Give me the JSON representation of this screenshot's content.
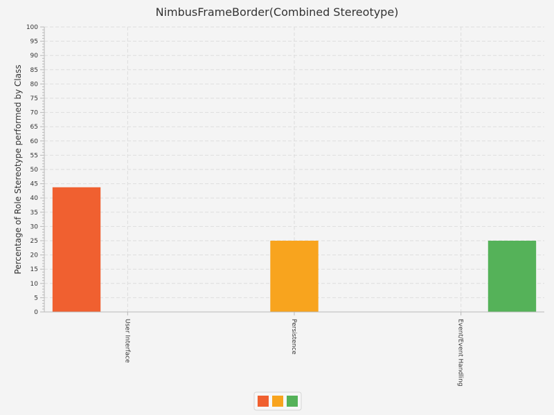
{
  "chart_data": {
    "type": "bar",
    "title": "NimbusFrameBorder(Combined Stereotype)",
    "xlabel": "",
    "ylabel": "Percentage of Role Stereotype performed by Class",
    "ylim": [
      0,
      100
    ],
    "y_major_step": 5,
    "y_minor_step": 1,
    "grid": true,
    "legend": "bottom-center",
    "categories": [
      "User Interface",
      "Persistence",
      "Event/Event Handling"
    ],
    "series": [
      {
        "values": [
          43.75,
          0,
          0
        ],
        "color": "#f06030"
      },
      {
        "values": [
          0,
          25,
          0
        ],
        "color": "#f8a41e"
      },
      {
        "values": [
          0,
          0,
          25
        ],
        "color": "#55b259"
      }
    ]
  },
  "colors": {
    "background": "#f4f4f4",
    "grid": "#dddddd",
    "axis": "#b8b8b8",
    "text": "#333333"
  }
}
